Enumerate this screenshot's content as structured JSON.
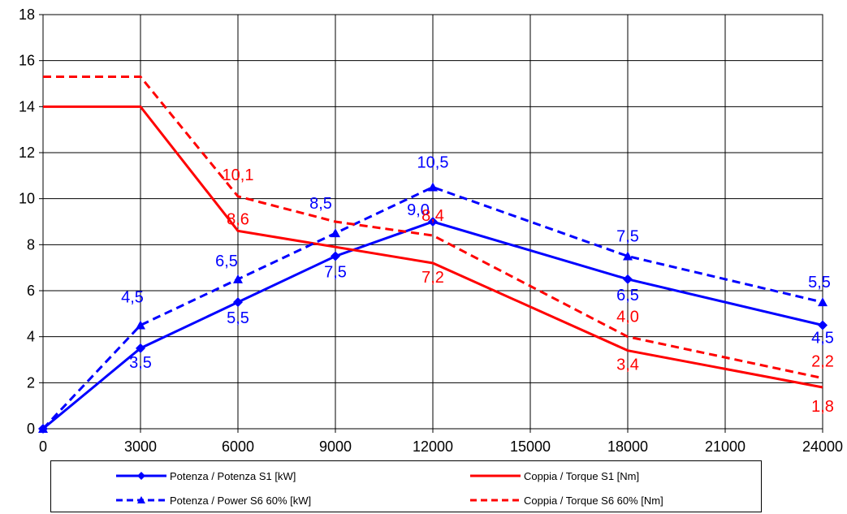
{
  "chart_data": {
    "type": "line",
    "x": [
      0,
      3000,
      6000,
      9000,
      12000,
      18000,
      24000
    ],
    "xticks": [
      "0",
      "3000",
      "6000",
      "9000",
      "12000",
      "15000",
      "18000",
      "21000",
      "24000"
    ],
    "yticks": [
      "0",
      "2",
      "4",
      "6",
      "8",
      "10",
      "12",
      "14",
      "16",
      "18"
    ],
    "xlim": [
      0,
      24000
    ],
    "ylim": [
      0,
      18
    ],
    "grid": true,
    "legend_position": "bottom",
    "series": [
      {
        "name": "Potenza / Potenza S1 [kW]",
        "color": "#0000ff",
        "dash": "solid",
        "marker": "diamond",
        "values": [
          0,
          3.5,
          5.5,
          7.5,
          9.0,
          6.5,
          4.5
        ],
        "labels": [
          "",
          "3,5",
          "5,5",
          "7,5",
          "9,0",
          "6,5",
          "4,5"
        ]
      },
      {
        "name": "Coppia / Torque S1 [Nm]",
        "color": "#ff0000",
        "dash": "solid",
        "marker": "none",
        "x": [
          0,
          3000,
          6000,
          12000,
          18000,
          24000
        ],
        "values": [
          14,
          14,
          8.6,
          7.2,
          3.4,
          1.8
        ],
        "labels": [
          "",
          "",
          "8,6",
          "7,2",
          "3,4",
          "1,8"
        ]
      },
      {
        "name": "Potenza / Power S6 60% [kW]",
        "color": "#0000ff",
        "dash": "dashed",
        "marker": "triangle",
        "values": [
          0,
          4.5,
          6.5,
          8.5,
          10.5,
          7.5,
          5.5
        ],
        "labels": [
          "",
          "4,5",
          "6,5",
          "8,5",
          "10,5",
          "7,5",
          "5,5"
        ]
      },
      {
        "name": "Coppia / Torque S6 60% [Nm]",
        "color": "#ff0000",
        "dash": "dashed",
        "marker": "none",
        "x": [
          0,
          3000,
          6000,
          9000,
          12000,
          18000,
          24000
        ],
        "values": [
          15.3,
          15.3,
          10.1,
          9.0,
          8.4,
          4.0,
          2.2
        ],
        "labels": [
          "",
          "",
          "10,1",
          "",
          "8,4",
          "4,0",
          "2,2"
        ]
      }
    ]
  }
}
